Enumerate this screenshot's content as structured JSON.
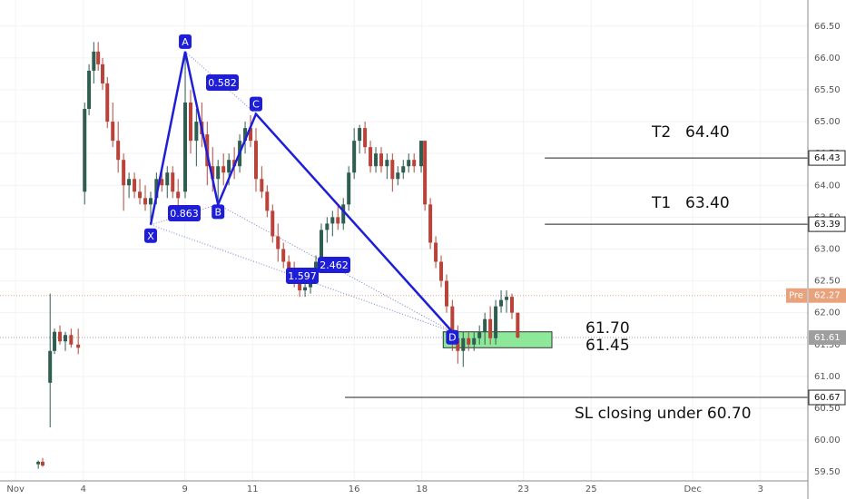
{
  "chart_data": {
    "type": "candlestick",
    "series": [
      {
        "up_color": "#2f5d50",
        "down_color": "#b8433a",
        "x": [
          0.67,
          0.8,
          1.02,
          1.15,
          1.31,
          1.47,
          1.64,
          1.85,
          2.04,
          2.17,
          2.31,
          2.44,
          2.57,
          2.71,
          2.87,
          3.03,
          3.19,
          3.35,
          3.51,
          3.67,
          3.83,
          3.99,
          4.16,
          4.32,
          4.48,
          4.64,
          4.8,
          5.01,
          5.17,
          5.34,
          5.5,
          5.66,
          5.82,
          5.98,
          6.14,
          6.3,
          6.46,
          6.62,
          6.78,
          6.94,
          7.1,
          7.27,
          7.43,
          7.59,
          7.75,
          7.91,
          8.07,
          8.23,
          8.39,
          8.55,
          8.71,
          8.87,
          9.03,
          9.2,
          9.36,
          9.52,
          9.68,
          9.84,
          10.0,
          10.16,
          10.32,
          10.48,
          10.64,
          10.8,
          10.97,
          11.13,
          11.29,
          11.45,
          11.61,
          11.77,
          11.98,
          12.09,
          12.25,
          12.41,
          12.57,
          12.73,
          12.9,
          13.06,
          13.22,
          13.38,
          13.54,
          13.7,
          13.86,
          14.02,
          14.18,
          14.34,
          14.5,
          14.66,
          14.83
        ],
        "open": [
          59.62,
          59.66,
          60.9,
          61.4,
          61.7,
          61.55,
          61.65,
          61.5,
          63.9,
          65.2,
          65.8,
          66.1,
          65.9,
          65.6,
          65.0,
          64.7,
          64.4,
          64.0,
          64.1,
          63.9,
          63.8,
          63.7,
          63.8,
          64.1,
          64.0,
          64.2,
          63.9,
          63.9,
          65.3,
          64.7,
          65.0,
          64.8,
          64.3,
          64.1,
          64.3,
          64.2,
          64.4,
          64.3,
          64.7,
          64.9,
          64.7,
          64.1,
          63.9,
          63.6,
          63.2,
          63.0,
          62.8,
          62.6,
          62.5,
          62.35,
          62.4,
          62.6,
          62.8,
          63.3,
          63.4,
          63.5,
          63.4,
          63.7,
          64.2,
          64.7,
          64.9,
          64.6,
          64.3,
          64.5,
          64.3,
          64.4,
          64.1,
          64.2,
          64.3,
          64.4,
          64.3,
          64.7,
          63.7,
          63.1,
          62.8,
          62.5,
          62.1,
          61.6,
          61.4,
          61.6,
          61.5,
          61.6,
          61.7,
          61.9,
          61.6,
          62.1,
          62.2,
          62.25,
          62.0
        ],
        "high": [
          59.68,
          59.72,
          62.3,
          61.75,
          61.8,
          61.7,
          61.75,
          61.75,
          65.3,
          65.9,
          66.25,
          66.25,
          66.0,
          65.7,
          65.3,
          65.0,
          64.5,
          64.2,
          64.2,
          64.1,
          64.0,
          63.9,
          64.2,
          64.3,
          64.3,
          64.3,
          64.1,
          66.1,
          65.5,
          65.2,
          65.3,
          65.0,
          64.6,
          64.4,
          64.5,
          64.5,
          64.6,
          64.8,
          65.0,
          65.1,
          64.9,
          64.3,
          64.0,
          63.7,
          63.4,
          63.1,
          62.9,
          62.8,
          62.6,
          62.5,
          62.7,
          62.9,
          63.4,
          63.5,
          63.6,
          63.7,
          63.8,
          64.3,
          64.9,
          64.95,
          65.0,
          64.7,
          64.6,
          64.6,
          64.5,
          64.5,
          64.3,
          64.4,
          64.5,
          64.5,
          64.7,
          64.7,
          63.8,
          63.2,
          62.9,
          62.6,
          62.2,
          61.8,
          61.7,
          61.7,
          61.7,
          61.8,
          62.0,
          62.1,
          62.2,
          62.35,
          62.35,
          62.3,
          62.0
        ],
        "low": [
          59.55,
          59.58,
          60.2,
          61.35,
          61.5,
          61.4,
          61.45,
          61.35,
          63.7,
          65.1,
          65.6,
          65.8,
          65.5,
          64.9,
          64.6,
          64.2,
          63.6,
          63.8,
          63.8,
          63.7,
          63.6,
          63.4,
          63.7,
          63.9,
          63.8,
          63.8,
          63.6,
          63.8,
          64.5,
          64.3,
          64.6,
          64.0,
          63.9,
          63.7,
          64.0,
          64.0,
          64.1,
          64.2,
          64.5,
          64.6,
          63.9,
          63.8,
          63.5,
          63.1,
          62.8,
          62.7,
          62.5,
          62.4,
          62.25,
          62.25,
          62.3,
          62.5,
          62.7,
          63.1,
          63.2,
          63.3,
          63.3,
          63.6,
          64.1,
          64.5,
          64.5,
          64.2,
          64.2,
          64.2,
          64.1,
          63.9,
          64.0,
          64.1,
          64.2,
          64.2,
          64.2,
          63.6,
          63.0,
          62.7,
          62.4,
          62.0,
          61.4,
          61.2,
          61.15,
          61.4,
          61.4,
          61.5,
          61.5,
          61.5,
          61.5,
          62.0,
          62.0,
          61.9,
          61.6
        ],
        "close": [
          59.66,
          59.6,
          61.4,
          61.7,
          61.55,
          61.65,
          61.5,
          61.45,
          65.2,
          65.8,
          66.1,
          65.9,
          65.6,
          65.0,
          64.7,
          64.4,
          64.0,
          64.1,
          63.9,
          63.8,
          63.7,
          63.8,
          64.1,
          64.0,
          64.2,
          63.9,
          63.8,
          65.3,
          64.7,
          65.0,
          64.8,
          64.3,
          64.1,
          64.3,
          64.2,
          64.4,
          64.3,
          64.7,
          64.9,
          64.7,
          64.1,
          63.9,
          63.6,
          63.2,
          63.0,
          62.8,
          62.6,
          62.5,
          62.35,
          62.4,
          62.6,
          62.8,
          63.3,
          63.4,
          63.5,
          63.4,
          63.7,
          64.2,
          64.7,
          64.9,
          64.6,
          64.3,
          64.5,
          64.3,
          64.4,
          64.1,
          64.2,
          64.3,
          64.4,
          64.3,
          64.7,
          63.7,
          63.1,
          62.8,
          62.5,
          62.1,
          61.6,
          61.4,
          61.6,
          61.5,
          61.6,
          61.7,
          61.9,
          61.6,
          62.1,
          62.2,
          62.25,
          62.0,
          61.61
        ]
      }
    ],
    "xlim": [
      -0.46,
      23.4
    ],
    "xticks": [
      {
        "value": 0,
        "label": "Nov"
      },
      {
        "value": 2,
        "label": "4"
      },
      {
        "value": 5,
        "label": "9"
      },
      {
        "value": 7,
        "label": "11"
      },
      {
        "value": 10,
        "label": "16"
      },
      {
        "value": 12,
        "label": "18"
      },
      {
        "value": 15,
        "label": "23"
      },
      {
        "value": 17,
        "label": "25"
      },
      {
        "value": 20,
        "label": "Dec"
      },
      {
        "value": 22,
        "label": "3"
      }
    ],
    "ylim": [
      59.36,
      66.91
    ],
    "yticks": [
      {
        "value": 59.5,
        "label": "59.50"
      },
      {
        "value": 60,
        "label": "60.00"
      },
      {
        "value": 60.5,
        "label": "60.50"
      },
      {
        "value": 61,
        "label": "61.00"
      },
      {
        "value": 61.5,
        "label": "61.50"
      },
      {
        "value": 62,
        "label": "62.00"
      },
      {
        "value": 62.5,
        "label": "62.50"
      },
      {
        "value": 63,
        "label": "63.00"
      },
      {
        "value": 63.5,
        "label": "63.50"
      },
      {
        "value": 64,
        "label": "64.00"
      },
      {
        "value": 64.5,
        "label": "64.50"
      },
      {
        "value": 65,
        "label": "65.00"
      },
      {
        "value": 65.5,
        "label": "65.50"
      },
      {
        "value": 66,
        "label": "66.00"
      },
      {
        "value": 66.5,
        "label": "66.50"
      }
    ],
    "grid": true,
    "pattern": {
      "color": "#1e1ed8",
      "points": [
        {
          "label": "X",
          "x": 3.99,
          "y": 63.38
        },
        {
          "label": "A",
          "x": 5.01,
          "y": 66.1
        },
        {
          "label": "B",
          "x": 5.98,
          "y": 63.7
        },
        {
          "label": "C",
          "x": 7.1,
          "y": 65.12
        },
        {
          "label": "D",
          "x": 12.9,
          "y": 61.7
        }
      ],
      "ratios": [
        "0.582",
        "0.863",
        "1.597",
        "2.462"
      ]
    },
    "levels": [
      {
        "value": 64.43,
        "from": 15.63
      },
      {
        "value": 63.39,
        "from": 15.63
      },
      {
        "value": 60.67,
        "from": 9.73
      }
    ],
    "price_lines": [
      {
        "value": 62.27,
        "tag": "Pre",
        "color": "#e8a27c"
      },
      {
        "value": 61.61,
        "color": "#9e9e9e"
      }
    ],
    "zone": {
      "x": [
        12.63,
        15.84
      ],
      "y": [
        61.45,
        61.7
      ],
      "color": "#8ee89a"
    },
    "annotations": [
      "T2",
      "64.40",
      "T1",
      "63.40",
      "61.70",
      "61.45",
      "SL closing under 60.70"
    ]
  }
}
